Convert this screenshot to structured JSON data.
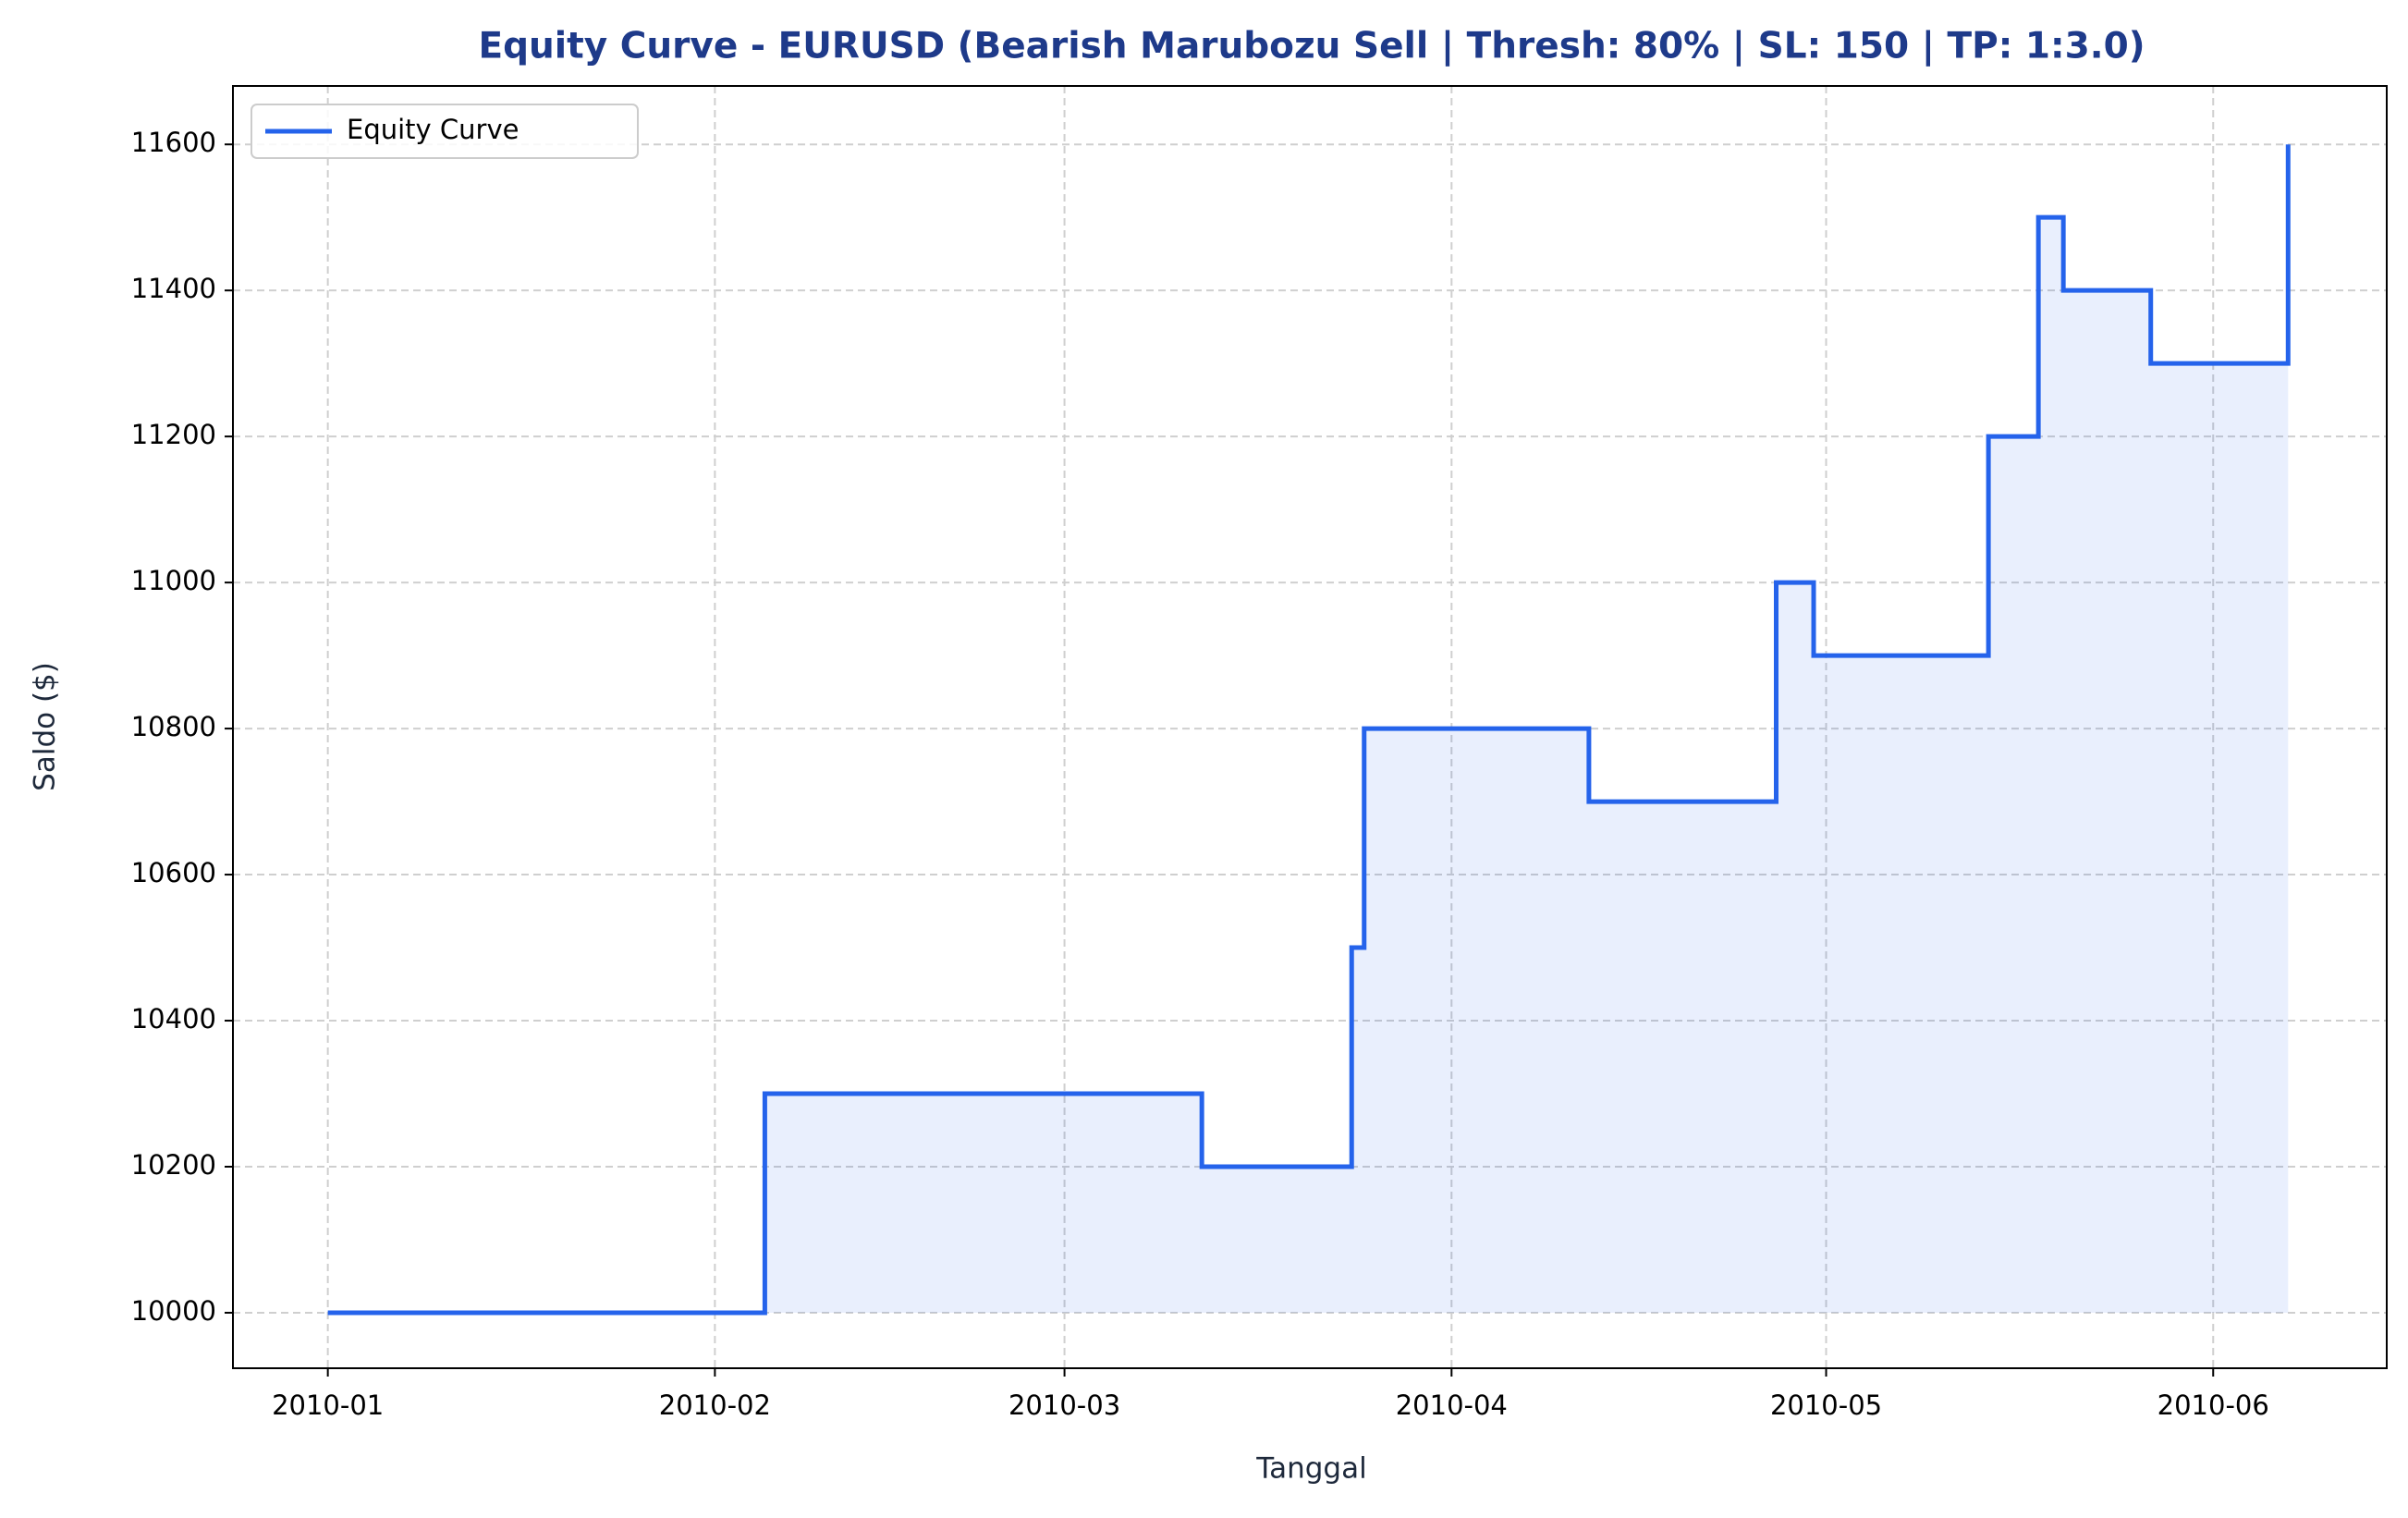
{
  "chart_data": {
    "type": "step",
    "title": "Equity Curve - EURUSD (Bearish Marubozu Sell | Thresh: 80% | SL: 150 | TP: 1:3.0)",
    "x_label": "Tanggal",
    "y_label": "Saldo ($)",
    "series": [
      {
        "name": "Equity Curve",
        "color": "#2563eb",
        "x": [
          0,
          35,
          70,
          82,
          83,
          101,
          116,
          119,
          133,
          137,
          139,
          146,
          157
        ],
        "values": [
          10000,
          10300,
          10200,
          10500,
          10800,
          10700,
          11000,
          10900,
          11200,
          11500,
          11400,
          11300,
          11600
        ]
      }
    ],
    "xlim": [
      -7.6,
      164.9
    ],
    "xticks": [
      {
        "value": 0,
        "label": "2010-01"
      },
      {
        "value": 31,
        "label": "2010-02"
      },
      {
        "value": 59,
        "label": "2010-03"
      },
      {
        "value": 90,
        "label": "2010-04"
      },
      {
        "value": 120,
        "label": "2010-05"
      },
      {
        "value": 151,
        "label": "2010-06"
      }
    ],
    "ylim": [
      9924,
      11680
    ],
    "yticks": [
      10000,
      10200,
      10400,
      10600,
      10800,
      11000,
      11200,
      11400,
      11600
    ],
    "grid": true,
    "legend": "upper left",
    "fill": true
  }
}
